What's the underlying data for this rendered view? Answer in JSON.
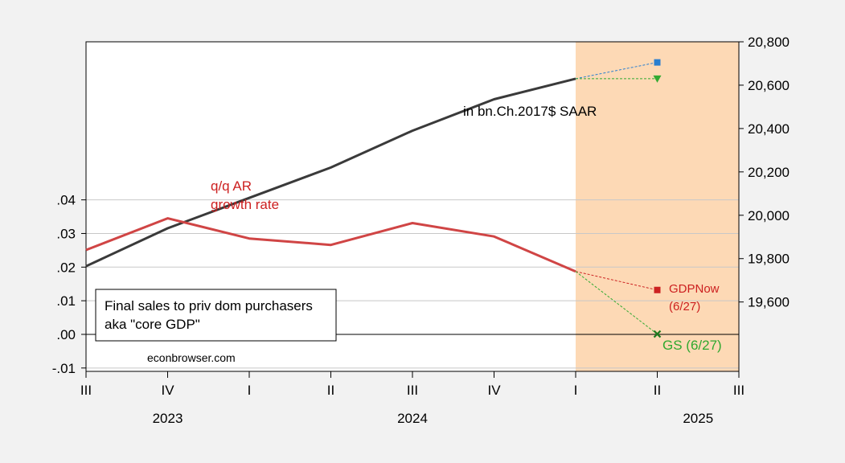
{
  "chart_data": {
    "type": "line",
    "categories": [
      "III",
      "IV",
      "I",
      "II",
      "III",
      "IV",
      "I",
      "II",
      "III"
    ],
    "years": [
      {
        "label": "2023",
        "at": 1
      },
      {
        "label": "2024",
        "at": 4
      },
      {
        "label": "2025",
        "at": 7.5
      }
    ],
    "left_axis": {
      "ticks": [
        -0.01,
        0.0,
        0.01,
        0.02,
        0.03,
        0.04
      ],
      "tick_labels": [
        "-.01",
        ".00",
        ".01",
        ".02",
        ".03",
        ".04"
      ],
      "ylim": [
        -0.011,
        0.087
      ]
    },
    "right_axis": {
      "ticks": [
        19600,
        19800,
        20000,
        20200,
        20400,
        20600,
        20800
      ],
      "tick_labels": [
        "19,600",
        "19,800",
        "20,000",
        "20,200",
        "20,400",
        "20,600",
        "20,800"
      ],
      "ylim": [
        19280,
        20800
      ]
    },
    "gridlines": [
      -0.01,
      0.01,
      0.02,
      0.03,
      0.04
    ],
    "zero_line": true,
    "shaded_region": {
      "from": 6,
      "to": 8,
      "color": "#fdd9b5"
    },
    "series": [
      {
        "axis": "right",
        "color": "#3a3a3a",
        "width": 3,
        "x": [
          0,
          1,
          2,
          3,
          4,
          5,
          6
        ],
        "values": [
          19765,
          19940,
          20080,
          20220,
          20390,
          20535,
          20630
        ]
      },
      {
        "axis": "left",
        "color": "#d04545",
        "width": 3,
        "x": [
          0,
          1,
          2,
          3,
          4,
          5,
          6
        ],
        "values": [
          0.0251,
          0.0345,
          0.0285,
          0.0266,
          0.0331,
          0.0291,
          0.0187
        ]
      },
      {
        "axis": "right",
        "color": "#2a7fd0",
        "width": 1,
        "dashed": true,
        "marker": "square",
        "x": [
          6,
          7
        ],
        "values": [
          20630,
          20705
        ]
      },
      {
        "axis": "right",
        "color": "#33aa33",
        "width": 1,
        "dashed": true,
        "marker": "triangle-down",
        "x": [
          6,
          7
        ],
        "values": [
          20630,
          20630
        ]
      },
      {
        "axis": "left",
        "color": "#cc2222",
        "width": 1,
        "dashed": true,
        "marker": "square",
        "x": [
          6,
          7
        ],
        "values": [
          0.0187,
          0.0132
        ]
      },
      {
        "axis": "left",
        "color": "#33aa33",
        "width": 1,
        "dashed": true,
        "marker": "x",
        "x": [
          6,
          7
        ],
        "values": [
          0.0187,
          0.0001
        ]
      }
    ],
    "annotations": {
      "level_label": "in bn.Ch.2017$ SAAR",
      "growth_label_1": "q/q AR",
      "growth_label_2": "growth rate",
      "gdpnow_label_1": "GDPNow",
      "gdpnow_label_2": "(6/27)",
      "gs_label": "GS (6/27)",
      "legend_line_1": "Final sales to priv dom purchasers",
      "legend_line_2": "aka \"core GDP\"",
      "source": "econbrowser.com"
    }
  }
}
